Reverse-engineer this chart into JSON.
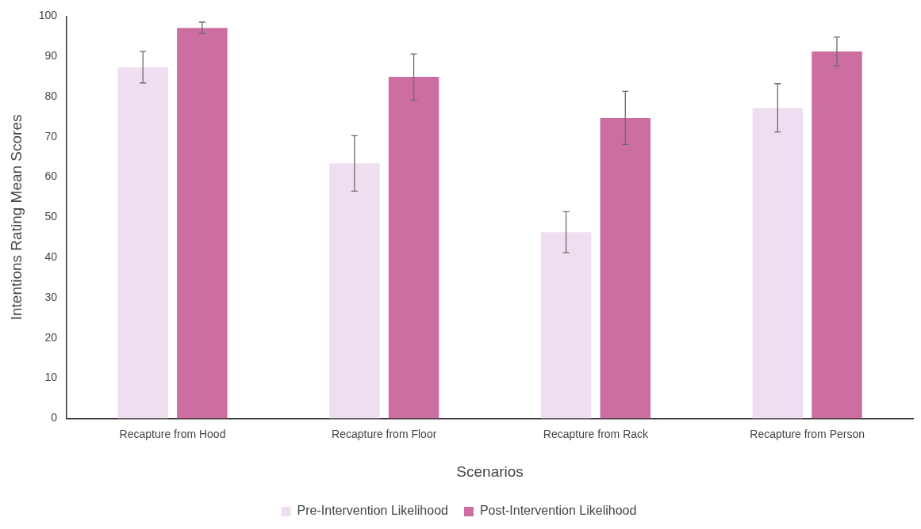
{
  "chart_data": {
    "type": "bar",
    "xlabel": "Scenarios",
    "ylabel": "Intentions Rating Mean Scores",
    "categories": [
      "Recapture from Hood",
      "Recapture from Floor",
      "Recapture from Rack",
      "Recapture from Person"
    ],
    "series": [
      {
        "name": "Pre-Intervention Likelihood",
        "color": "#efdef0",
        "values": [
          87.3,
          63.4,
          46.3,
          77.2
        ],
        "errors": [
          3.9,
          6.9,
          5.1,
          6.0
        ]
      },
      {
        "name": "Post-Intervention Likelihood",
        "color": "#cc6e9f",
        "values": [
          97.1,
          84.9,
          74.7,
          91.2
        ],
        "errors": [
          1.4,
          5.7,
          6.6,
          3.6
        ]
      }
    ],
    "ylim": [
      0,
      100
    ],
    "yticks": [
      0,
      10,
      20,
      30,
      40,
      50,
      60,
      70,
      80,
      90,
      100
    ],
    "grid": false,
    "legend": "bottom"
  }
}
